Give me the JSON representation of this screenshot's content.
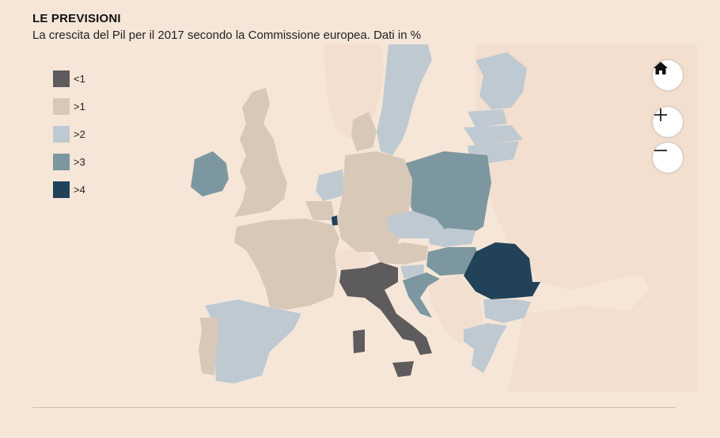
{
  "header": {
    "title": "LE PREVISIONI",
    "subtitle": "La crescita del Pil per il 2017 secondo la Commissione europea. Dati in %"
  },
  "legend": [
    {
      "label": "<1",
      "color": "#5d5b5c"
    },
    {
      "label": ">1",
      "color": "#d8c8b8"
    },
    {
      "label": ">2",
      "color": "#bfc9d1"
    },
    {
      "label": ">3",
      "color": "#7c979f"
    },
    {
      "label": ">4",
      "color": "#22425a"
    }
  ],
  "colors": {
    "background": "#f5e6d8",
    "non_eu": "#f2dfd0",
    "sea": "#f5e6d8"
  },
  "controls": {
    "home_icon": "home-icon",
    "zoom_in_icon": "plus-icon",
    "zoom_out_icon": "minus-icon"
  }
}
